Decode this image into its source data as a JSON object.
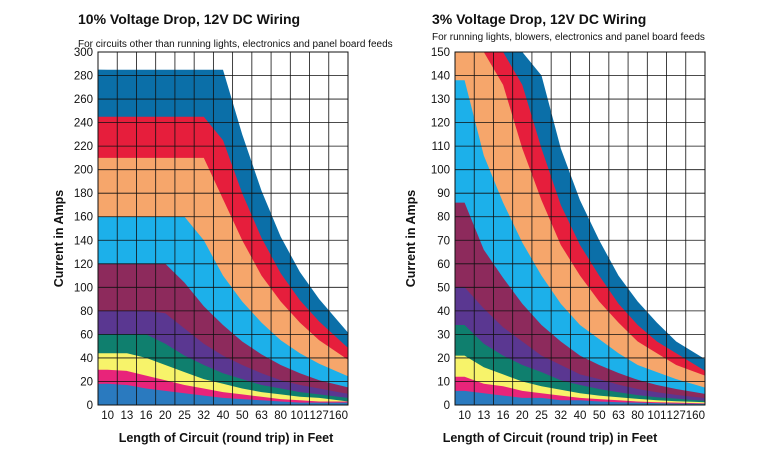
{
  "chart_data": [
    {
      "type": "area",
      "title": "10% Voltage Drop, 12V DC Wiring",
      "subtitle": "For circuits other than running lights, electronics and panel board feeds",
      "xlabel": "Length of Circuit (round trip) in Feet",
      "ylabel": "Current in Amps",
      "x_ticks": [
        "10",
        "13",
        "16",
        "20",
        "25",
        "32",
        "40",
        "50",
        "63",
        "80",
        "101",
        "127",
        "160"
      ],
      "y_ticks": [
        "0",
        "20",
        "40",
        "60",
        "80",
        "100",
        "120",
        "140",
        "160",
        "180",
        "200",
        "220",
        "240",
        "260",
        "280",
        "300"
      ],
      "ylim": [
        0,
        300
      ],
      "grid": true,
      "colors": [
        "#2a7abf",
        "#e8247a",
        "#f7f36a",
        "#0f7f6e",
        "#5a3791",
        "#8d2a5c",
        "#1cb0ea",
        "#f6a66b",
        "#e61e3c",
        "#0b6fa8"
      ],
      "bands": [
        {
          "cap": 18,
          "values": [
            18,
            17,
            14,
            12,
            10,
            8,
            6,
            5,
            4,
            3,
            2,
            2,
            2
          ]
        },
        {
          "cap": 30,
          "values": [
            30,
            29,
            25,
            21,
            17,
            14,
            11,
            9,
            7,
            5,
            4,
            3,
            3
          ]
        },
        {
          "cap": 44,
          "values": [
            44,
            44,
            40,
            34,
            28,
            22,
            18,
            14,
            11,
            9,
            7,
            6,
            4
          ]
        },
        {
          "cap": 60,
          "values": [
            60,
            60,
            60,
            52,
            42,
            34,
            27,
            22,
            17,
            14,
            11,
            9,
            7
          ]
        },
        {
          "cap": 80,
          "values": [
            80,
            80,
            80,
            78,
            65,
            52,
            42,
            34,
            27,
            21,
            17,
            14,
            11
          ]
        },
        {
          "cap": 120,
          "values": [
            120,
            120,
            120,
            120,
            104,
            84,
            68,
            54,
            43,
            34,
            27,
            21,
            17
          ]
        },
        {
          "cap": 160,
          "values": [
            160,
            160,
            160,
            160,
            160,
            140,
            110,
            88,
            70,
            55,
            44,
            35,
            28
          ]
        },
        {
          "cap": 210,
          "values": [
            210,
            210,
            210,
            210,
            210,
            210,
            175,
            140,
            110,
            88,
            70,
            55,
            44
          ]
        },
        {
          "cap": 245,
          "values": [
            245,
            245,
            245,
            245,
            245,
            245,
            225,
            180,
            142,
            112,
            89,
            71,
            56
          ]
        },
        {
          "cap": 285,
          "values": [
            285,
            285,
            285,
            285,
            285,
            285,
            285,
            230,
            182,
            143,
            113,
            90,
            71
          ]
        }
      ]
    },
    {
      "type": "area",
      "title": "3% Voltage Drop, 12V DC Wiring",
      "subtitle": "For running lights, blowers, electronics and panel board feeds",
      "xlabel": "Length of Circuit (round trip) in Feet",
      "ylabel": "Current in Amps",
      "x_ticks": [
        "10",
        "13",
        "16",
        "20",
        "25",
        "32",
        "40",
        "50",
        "63",
        "80",
        "101",
        "127",
        "160"
      ],
      "y_ticks": [
        "0",
        "10",
        "20",
        "30",
        "40",
        "50",
        "60",
        "70",
        "80",
        "90",
        "100",
        "110",
        "120",
        "130",
        "140",
        "150"
      ],
      "ylim": [
        0,
        150
      ],
      "grid": true,
      "colors": [
        "#2a7abf",
        "#e8247a",
        "#f7f36a",
        "#0f7f6e",
        "#5a3791",
        "#8d2a5c",
        "#1cb0ea",
        "#f6a66b",
        "#e61e3c",
        "#0b6fa8"
      ],
      "bands": [
        {
          "cap": 6,
          "values": [
            6,
            5,
            4,
            3,
            3,
            2,
            2,
            1.5,
            1.2,
            1,
            0.8,
            0.6,
            0.5
          ]
        },
        {
          "cap": 12,
          "values": [
            12,
            9,
            8,
            6,
            5,
            4,
            3,
            2.5,
            2,
            1.5,
            1.2,
            1,
            0.8
          ]
        },
        {
          "cap": 21,
          "values": [
            21,
            16,
            13,
            10,
            8,
            6.5,
            5,
            4,
            3.3,
            2.6,
            2,
            1.6,
            1.3
          ]
        },
        {
          "cap": 34,
          "values": [
            34,
            26,
            21,
            17,
            14,
            10.5,
            8.5,
            6.8,
            5.4,
            4.2,
            3.3,
            2.7,
            2.1
          ]
        },
        {
          "cap": 50,
          "values": [
            50,
            41,
            33,
            27,
            21,
            17,
            13,
            11,
            8.6,
            6.8,
            5.4,
            4.3,
            3.4
          ]
        },
        {
          "cap": 86,
          "values": [
            86,
            66,
            54,
            43,
            34,
            27,
            21,
            17,
            13.6,
            10.7,
            8.5,
            6.8,
            5.4
          ]
        },
        {
          "cap": 150,
          "values": [
            138,
            106,
            86,
            69,
            55,
            43,
            34,
            28,
            22,
            17,
            14,
            11,
            8.6
          ]
        },
        {
          "cap": 150,
          "values": [
            150,
            150,
            136,
            109,
            87,
            68,
            55,
            44,
            35,
            27,
            22,
            17,
            14
          ]
        },
        {
          "cap": 150,
          "values": [
            150,
            150,
            150,
            136,
            109,
            85,
            68,
            55,
            43,
            34,
            27,
            22,
            17
          ]
        },
        {
          "cap": 150,
          "values": [
            150,
            150,
            150,
            150,
            140,
            109,
            87,
            70,
            55,
            44,
            35,
            27,
            22
          ]
        }
      ]
    }
  ]
}
